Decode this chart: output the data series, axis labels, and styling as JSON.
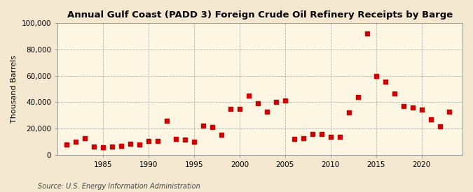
{
  "title": "Annual Gulf Coast (PADD 3) Foreign Crude Oil Refinery Receipts by Barge",
  "ylabel": "Thousand Barrels",
  "source": "Source: U.S. Energy Information Administration",
  "background_color": "#f5e8d0",
  "plot_background_color": "#fdf6e3",
  "marker_color": "#cc0000",
  "years": [
    1981,
    1982,
    1983,
    1984,
    1985,
    1986,
    1987,
    1988,
    1989,
    1990,
    1991,
    1992,
    1993,
    1994,
    1995,
    1996,
    1997,
    1998,
    1999,
    2000,
    2001,
    2002,
    2003,
    2004,
    2005,
    2006,
    2007,
    2008,
    2009,
    2010,
    2011,
    2012,
    2013,
    2014,
    2015,
    2016,
    2017,
    2018,
    2019,
    2020,
    2021,
    2022,
    2023
  ],
  "values": [
    8000,
    10000,
    12500,
    6000,
    5500,
    6000,
    6500,
    8500,
    8000,
    10500,
    10500,
    26000,
    12000,
    11500,
    10000,
    22000,
    21000,
    15000,
    35000,
    35000,
    45000,
    39000,
    32500,
    40000,
    41000,
    12000,
    12500,
    16000,
    16000,
    13500,
    13500,
    32000,
    44000,
    92000,
    60000,
    55500,
    46500,
    37000,
    36000,
    34500,
    27000,
    21500,
    33000
  ],
  "ylim": [
    0,
    100000
  ],
  "yticks": [
    0,
    20000,
    40000,
    60000,
    80000,
    100000
  ],
  "ytick_labels": [
    "0",
    "20,000",
    "40,000",
    "60,000",
    "80,000",
    "100,000"
  ],
  "xticks": [
    1985,
    1990,
    1995,
    2000,
    2005,
    2010,
    2015,
    2020
  ],
  "xtick_labels": [
    "1985",
    "1990",
    "1995",
    "2000",
    "2005",
    "2010",
    "2015",
    "2020"
  ],
  "xlim": [
    1980,
    2024.5
  ],
  "grid_color": "#aaaaaa",
  "title_fontsize": 9.5,
  "label_fontsize": 8,
  "tick_fontsize": 7.5,
  "source_fontsize": 7
}
